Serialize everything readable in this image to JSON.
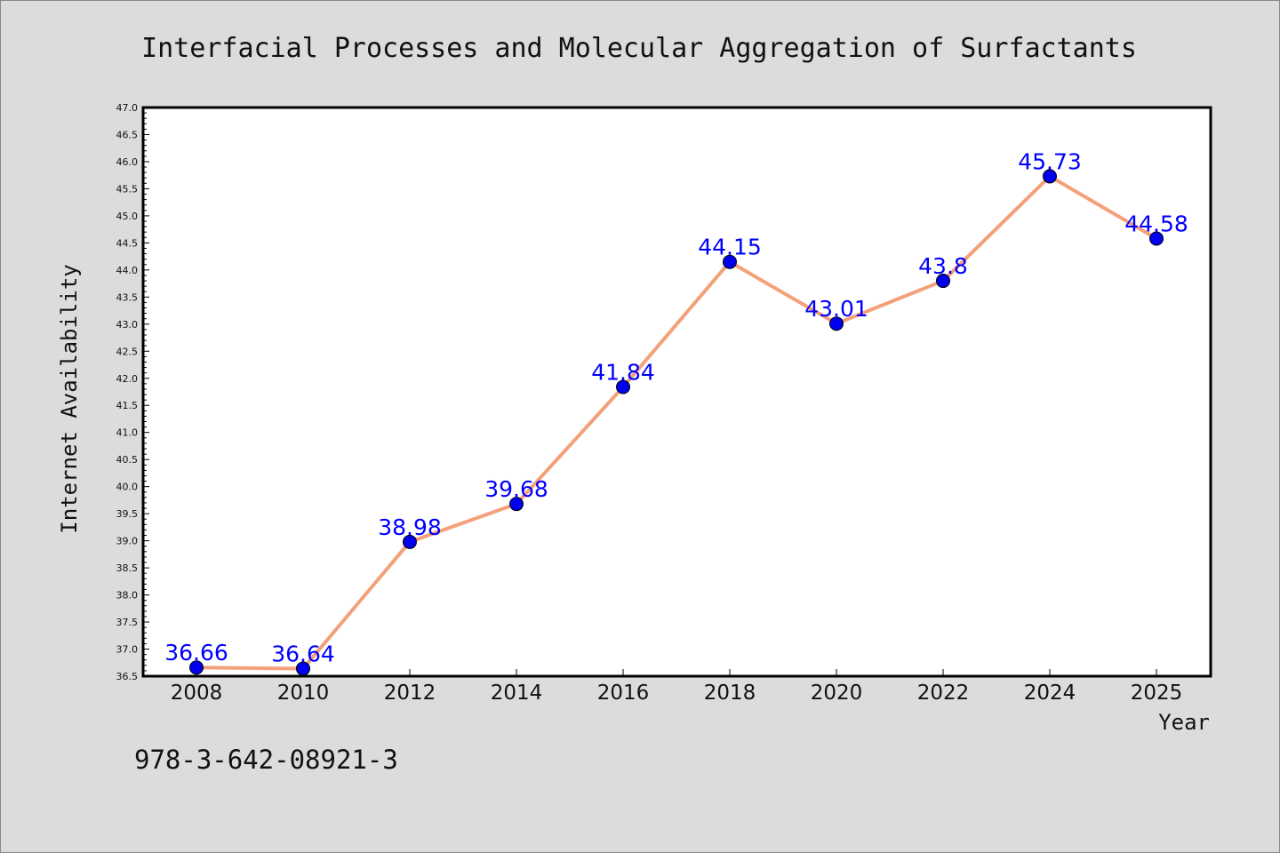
{
  "chart_data": {
    "type": "line",
    "title": "Interfacial Processes and Molecular Aggregation of Surfactants",
    "xlabel": "Year",
    "ylabel": "Internet Availability",
    "categories": [
      "2008",
      "2010",
      "2012",
      "2014",
      "2016",
      "2018",
      "2020",
      "2022",
      "2024",
      "2025"
    ],
    "series": [
      {
        "values": [
          36.66,
          36.64,
          38.98,
          39.68,
          41.84,
          44.15,
          43.01,
          43.8,
          45.73,
          44.58
        ],
        "labels": [
          "36.66",
          "36.64",
          "38.98",
          "39.68",
          "41.84",
          "44.15",
          "43.01",
          "43.8",
          "45.73",
          "44.58"
        ]
      }
    ],
    "ylim": [
      36.5,
      47.0
    ],
    "yticks": [
      "36.5",
      "37.0",
      "37.5",
      "38.0",
      "38.5",
      "39.0",
      "39.5",
      "40.0",
      "40.5",
      "41.0",
      "41.5",
      "42.0",
      "42.5",
      "43.0",
      "43.5",
      "44.0",
      "44.5",
      "45.0",
      "45.5",
      "46.0",
      "46.5",
      "47.0"
    ],
    "grid": false,
    "legend": "none",
    "line_color": "#f4a07a",
    "marker_color": "#0000ee",
    "label_color": "#0000ff"
  },
  "footer": {
    "isbn": "978-3-642-08921-3"
  }
}
